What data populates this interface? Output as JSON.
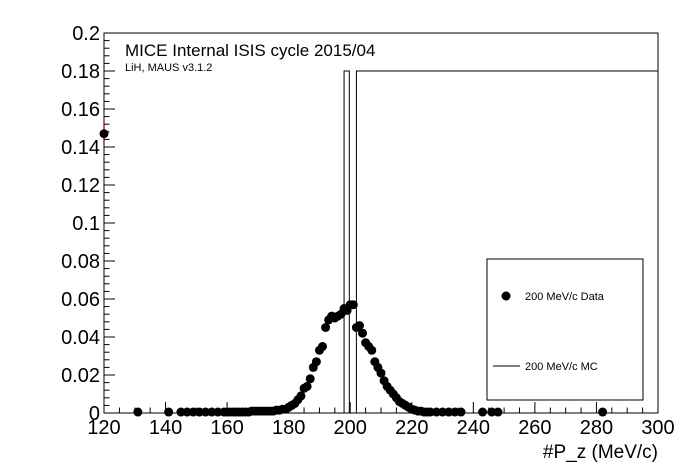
{
  "chart_data": {
    "type": "scatter",
    "title": "",
    "annotations": {
      "line1": "MICE Internal ISIS cycle 2015/04",
      "line2": "LiH, MAUS v3.1.2"
    },
    "xlabel": "#P_z (MeV/c)",
    "ylabel": "",
    "xlim": [
      120,
      300
    ],
    "ylim": [
      0,
      0.2
    ],
    "x_ticks": [
      "120",
      "140",
      "160",
      "180",
      "200",
      "220",
      "240",
      "260",
      "280",
      "300"
    ],
    "y_ticks": [
      "0",
      "0.02",
      "0.04",
      "0.06",
      "0.08",
      "0.1",
      "0.12",
      "0.14",
      "0.16",
      "0.18",
      "0.2"
    ],
    "grid": false,
    "legend_position": "bottom-right",
    "series": [
      {
        "name": "200 MeV/c Data",
        "kind": "markers",
        "color": "#000000",
        "error_color": "#d01010",
        "x": [
          120,
          131,
          141,
          145,
          147,
          149,
          151,
          153,
          155,
          157,
          159,
          160,
          161,
          162,
          163,
          164,
          165,
          166,
          167,
          168,
          169,
          170,
          171,
          172,
          173,
          174,
          175,
          176,
          177,
          178,
          179,
          180,
          181,
          182,
          183,
          184,
          185,
          186,
          187,
          188,
          189,
          190,
          191,
          192,
          193,
          194,
          195,
          196,
          197,
          198,
          199,
          200,
          201,
          202,
          203,
          204,
          205,
          206,
          207,
          208,
          209,
          210,
          211,
          212,
          213,
          214,
          215,
          216,
          217,
          218,
          219,
          220,
          221,
          222,
          223,
          224,
          225,
          226,
          228,
          230,
          232,
          234,
          236,
          243,
          246,
          248,
          282
        ],
        "y": [
          0.147,
          0.0005,
          0.0005,
          0.0005,
          0.0005,
          0.0005,
          0.0005,
          0.0005,
          0.0005,
          0.0005,
          0.0005,
          0.0005,
          0.0005,
          0.0005,
          0.0005,
          0.0005,
          0.0005,
          0.0005,
          0.0005,
          0.001,
          0.001,
          0.001,
          0.001,
          0.001,
          0.001,
          0.001,
          0.001,
          0.0015,
          0.0015,
          0.002,
          0.002,
          0.003,
          0.004,
          0.005,
          0.007,
          0.009,
          0.013,
          0.014,
          0.018,
          0.024,
          0.027,
          0.033,
          0.035,
          0.045,
          0.049,
          0.051,
          0.05,
          0.051,
          0.052,
          0.055,
          0.054,
          0.057,
          0.057,
          0.045,
          0.046,
          0.042,
          0.037,
          0.035,
          0.033,
          0.027,
          0.024,
          0.021,
          0.017,
          0.014,
          0.012,
          0.01,
          0.008,
          0.006,
          0.005,
          0.004,
          0.003,
          0.002,
          0.0015,
          0.001,
          0.001,
          0.0005,
          0.0005,
          0.0005,
          0.0005,
          0.0005,
          0.0005,
          0.0005,
          0.0005,
          0.0005,
          0.0005,
          0.0005,
          0.0005
        ]
      },
      {
        "name": "200 MeV/c MC",
        "kind": "histogram",
        "color": "#000000",
        "bin_edges": [
          120,
          198,
          199.7,
          200.6,
          202,
          300
        ],
        "values": [
          0,
          0.18,
          0,
          0,
          0.18
        ]
      }
    ]
  }
}
